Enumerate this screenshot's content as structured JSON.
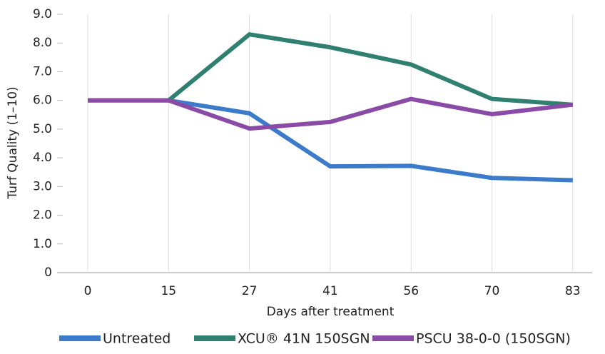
{
  "chart_data": {
    "type": "line",
    "xlabel": "Days after treatment",
    "ylabel": "Turf Quality (1–10)",
    "categories": [
      "0",
      "15",
      "27",
      "41",
      "56",
      "70",
      "83"
    ],
    "series": [
      {
        "name": "Untreated",
        "color": "#3b7bc9",
        "values": [
          6.0,
          6.0,
          5.55,
          3.7,
          3.72,
          3.3,
          3.22
        ]
      },
      {
        "name": "XCU® 41N 150SGN",
        "color": "#2f8071",
        "values": [
          6.0,
          6.0,
          8.3,
          7.85,
          7.25,
          6.05,
          5.85
        ]
      },
      {
        "name": "PSCU 38-0-0 (150SGN)",
        "color": "#8a4ba7",
        "values": [
          6.0,
          6.0,
          5.02,
          5.25,
          6.05,
          5.52,
          5.85
        ]
      }
    ],
    "ylim": [
      0,
      9
    ],
    "yticks": [
      0,
      {
        "value": 1,
        "label": "1.0"
      },
      {
        "value": 2,
        "label": "2.0"
      },
      {
        "value": 3,
        "label": "3.0"
      },
      {
        "value": 4,
        "label": "4.0"
      },
      {
        "value": 5,
        "label": "5.0"
      },
      {
        "value": 6,
        "label": "6.0"
      },
      {
        "value": 7,
        "label": "7.0"
      },
      {
        "value": 8,
        "label": "8.0"
      },
      {
        "value": 9,
        "label": "9.0"
      }
    ],
    "grid": true
  }
}
